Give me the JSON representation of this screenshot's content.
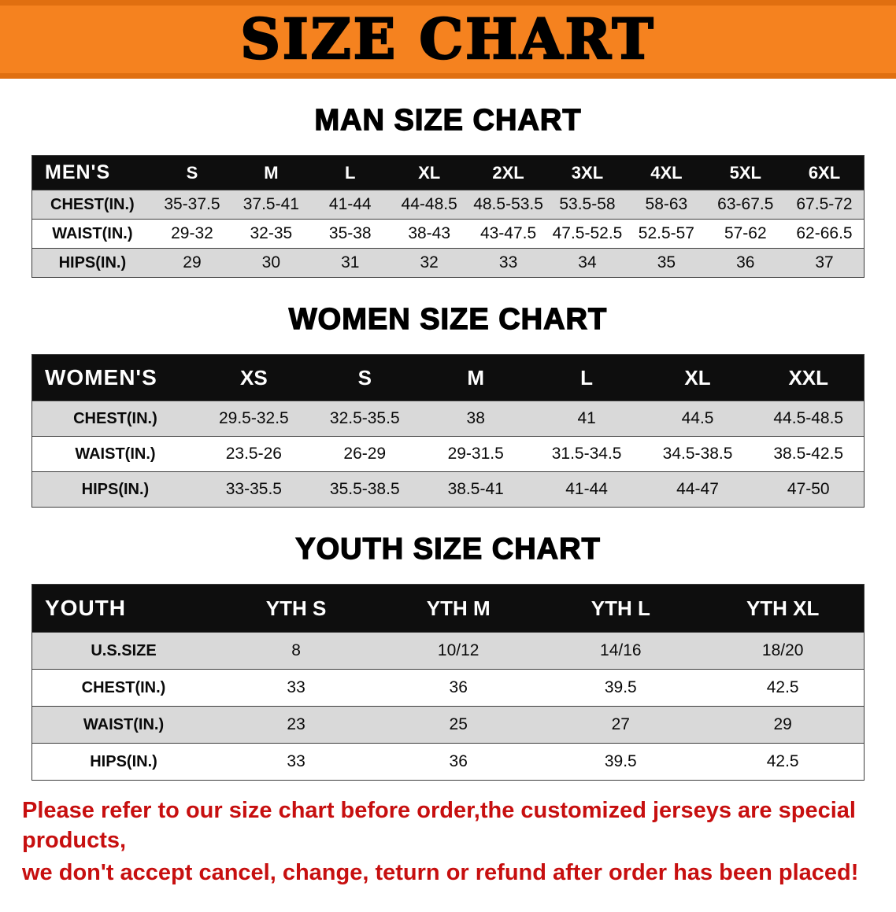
{
  "banner": {
    "title": "SIZE CHART"
  },
  "colors": {
    "banner_bg": "#f5821f",
    "banner_edge": "#e06f10",
    "header_bg": "#0e0e0e",
    "row_shade": "#d9d9d9",
    "footer_red": "#c70f0f"
  },
  "chart_data": [
    {
      "type": "table",
      "id": "mens",
      "title": "MAN SIZE CHART",
      "label": "MEN'S",
      "columns": [
        "S",
        "M",
        "L",
        "XL",
        "2XL",
        "3XL",
        "4XL",
        "5XL",
        "6XL"
      ],
      "rows": [
        {
          "name": "CHEST(IN.)",
          "values": [
            "35-37.5",
            "37.5-41",
            "41-44",
            "44-48.5",
            "48.5-53.5",
            "53.5-58",
            "58-63",
            "63-67.5",
            "67.5-72"
          ]
        },
        {
          "name": "WAIST(IN.)",
          "values": [
            "29-32",
            "32-35",
            "35-38",
            "38-43",
            "43-47.5",
            "47.5-52.5",
            "52.5-57",
            "57-62",
            "62-66.5"
          ]
        },
        {
          "name": "HIPS(IN.)",
          "values": [
            "29",
            "30",
            "31",
            "32",
            "33",
            "34",
            "35",
            "36",
            "37"
          ]
        }
      ]
    },
    {
      "type": "table",
      "id": "women",
      "title": "WOMEN SIZE CHART",
      "label": "WOMEN'S",
      "columns": [
        "XS",
        "S",
        "M",
        "L",
        "XL",
        "XXL"
      ],
      "rows": [
        {
          "name": "CHEST(IN.)",
          "values": [
            "29.5-32.5",
            "32.5-35.5",
            "38",
            "41",
            "44.5",
            "44.5-48.5"
          ]
        },
        {
          "name": "WAIST(IN.)",
          "values": [
            "23.5-26",
            "26-29",
            "29-31.5",
            "31.5-34.5",
            "34.5-38.5",
            "38.5-42.5"
          ]
        },
        {
          "name": "HIPS(IN.)",
          "values": [
            "33-35.5",
            "35.5-38.5",
            "38.5-41",
            "41-44",
            "44-47",
            "47-50"
          ]
        }
      ]
    },
    {
      "type": "table",
      "id": "youth",
      "title": "YOUTH SIZE CHART",
      "label": "YOUTH",
      "columns": [
        "YTH S",
        "YTH M",
        "YTH L",
        "YTH XL"
      ],
      "rows": [
        {
          "name": "U.S.SIZE",
          "values": [
            "8",
            "10/12",
            "14/16",
            "18/20"
          ]
        },
        {
          "name": "CHEST(IN.)",
          "values": [
            "33",
            "36",
            "39.5",
            "42.5"
          ]
        },
        {
          "name": "WAIST(IN.)",
          "values": [
            "23",
            "25",
            "27",
            "29"
          ]
        },
        {
          "name": "HIPS(IN.)",
          "values": [
            "33",
            "36",
            "39.5",
            "42.5"
          ]
        }
      ]
    }
  ],
  "disclaimer": {
    "line1": "Please refer to our size chart before order,the customized jerseys are special products,",
    "line2": "we don't accept cancel, change, teturn or refund after order has been placed!"
  }
}
